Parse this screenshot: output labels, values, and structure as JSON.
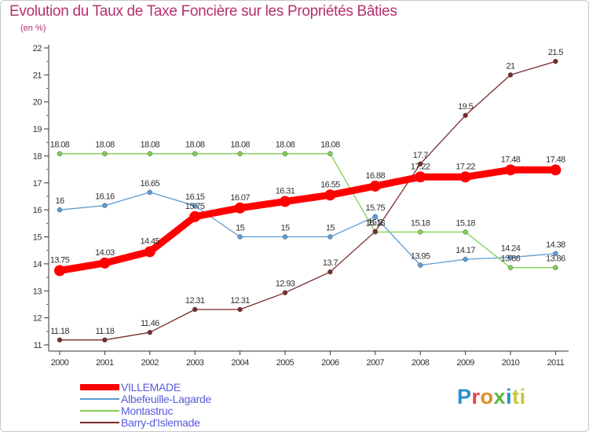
{
  "chart_data": {
    "type": "line",
    "title": "Evolution du Taux de Taxe Foncière sur les Propriétés Bâties",
    "subtitle": "(en %)",
    "xlabel": "",
    "ylabel": "",
    "categories": [
      "2000",
      "2001",
      "2002",
      "2003",
      "2004",
      "2005",
      "2006",
      "2007",
      "2008",
      "2009",
      "2010",
      "2011"
    ],
    "ylim": [
      11,
      22
    ],
    "yticks": [
      "11",
      "12",
      "13",
      "14",
      "15",
      "16",
      "17",
      "18",
      "19",
      "20",
      "21",
      "22"
    ],
    "grid": false,
    "legend_position": "bottom-left",
    "series": [
      {
        "name": "VILLEMADE",
        "color": "#ff0000",
        "values": [
          13.75,
          14.03,
          14.45,
          15.75,
          16.07,
          16.31,
          16.55,
          16.88,
          17.22,
          17.22,
          17.48,
          17.48
        ],
        "labels": [
          "13.75",
          "14.03",
          "14.45",
          "15.75",
          "16.07",
          "16.31",
          "16.55",
          "16.88",
          "17.22",
          "17.22",
          "17.48",
          "17.48"
        ]
      },
      {
        "name": "Albefeuille-Lagarde",
        "color": "#5b9bd5",
        "values": [
          16,
          16.16,
          16.65,
          16.15,
          15,
          15,
          15,
          15.75,
          13.95,
          14.17,
          14.24,
          14.38
        ],
        "labels": [
          "16",
          "16.16",
          "16.65",
          "16.15",
          "15",
          "15",
          "15",
          "15.75",
          "13.95",
          "14.17",
          "14.24",
          "14.38"
        ]
      },
      {
        "name": "Montastruc",
        "color": "#7ed050",
        "values": [
          18.08,
          18.08,
          18.08,
          18.08,
          18.08,
          18.08,
          18.08,
          15.18,
          15.18,
          15.18,
          13.86,
          13.86
        ],
        "labels": [
          "18.08",
          "18.08",
          "18.08",
          "18.08",
          "18.08",
          "18.08",
          "18.08",
          "15.18",
          "15.18",
          "15.18",
          "13.86",
          "13.86"
        ]
      },
      {
        "name": "Barry-d'Islemade",
        "color": "#7b2a2a",
        "values": [
          11.18,
          11.18,
          11.46,
          12.31,
          12.31,
          12.93,
          13.7,
          15.2,
          17.7,
          19.5,
          21,
          21.5
        ],
        "labels": [
          "11.18",
          "11.18",
          "11.46",
          "12.31",
          "12.31",
          "12.93",
          "13.7",
          "15.2",
          "17.7",
          "19.5",
          "21",
          "21.5"
        ]
      }
    ]
  },
  "logo": {
    "text_parts": [
      "P",
      "r",
      "o",
      "x",
      "i",
      "ti"
    ],
    "alt": "Proxiti"
  }
}
